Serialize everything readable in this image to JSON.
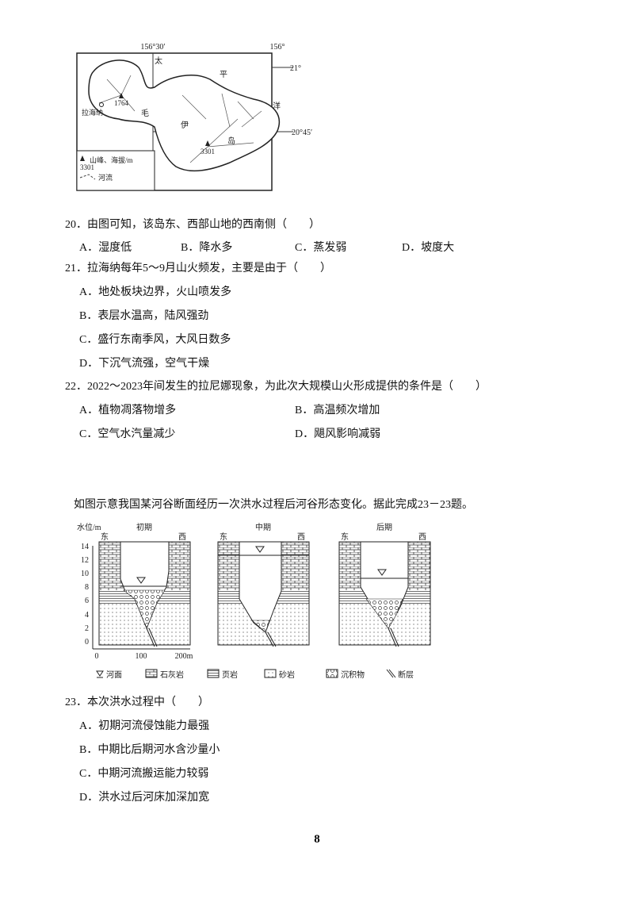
{
  "map": {
    "lon_labels": [
      "156°30′",
      "156°"
    ],
    "lat_labels": [
      "21°",
      "20°45′"
    ],
    "sea": [
      "太",
      "平",
      "洋"
    ],
    "island": [
      "毛",
      "伊",
      "岛"
    ],
    "peaks": [
      "1764",
      "3301"
    ],
    "town": "拉海纳",
    "legend": {
      "peak_value": "3301",
      "peak_text": "山峰、海拔/m",
      "river_text": "河流"
    }
  },
  "questions_a": [
    {
      "stem": "20．由图可知，该岛东、西部山地的西南侧（　　）",
      "options": [
        "A．湿度低",
        "B．降水多",
        "C．蒸发弱",
        "D．坡度大"
      ]
    },
    {
      "stem": "21．拉海纳每年5～9月山火频发，主要是由于（　　）",
      "options": [
        "A．地处板块边界，火山喷发多",
        "B．表层水温高，陆风强劲",
        "C．盛行东南季风，大风日数多",
        "D．下沉气流强，空气干燥"
      ]
    },
    {
      "stem": "22．2022～2023年间发生的拉尼娜现象，为此次大规模山火形成提供的条件是（　　）",
      "options": [
        "A．植物凋落物增多",
        "B．高温频次增加",
        "C．空气水汽量减少",
        "D．飓风影响减弱"
      ]
    }
  ],
  "intro": "如图示意我国某河谷断面经历一次洪水过程后河谷形态变化。据此完成23－23题。",
  "diagram": {
    "y_axis_title": "水位/m",
    "y_ticks": [
      "14",
      "12",
      "10",
      "8",
      "6",
      "4",
      "2",
      "0"
    ],
    "x_ticks": [
      "0",
      "100",
      "200m"
    ],
    "panels": [
      {
        "title": "初期",
        "east": "东",
        "west": "西"
      },
      {
        "title": "中期",
        "east": "东",
        "west": "西"
      },
      {
        "title": "后期",
        "east": "东",
        "west": "西"
      }
    ],
    "legend": [
      "河面",
      "石灰岩",
      "页岩",
      "砂岩",
      "沉积物",
      "断层"
    ]
  },
  "question_23": {
    "stem": "23．本次洪水过程中（　　）",
    "options": [
      "A．初期河流侵蚀能力最强",
      "B．中期比后期河水含沙量小",
      "C．中期河流搬运能力较弱",
      "D．洪水过后河床加深加宽"
    ]
  },
  "page_number": "8"
}
